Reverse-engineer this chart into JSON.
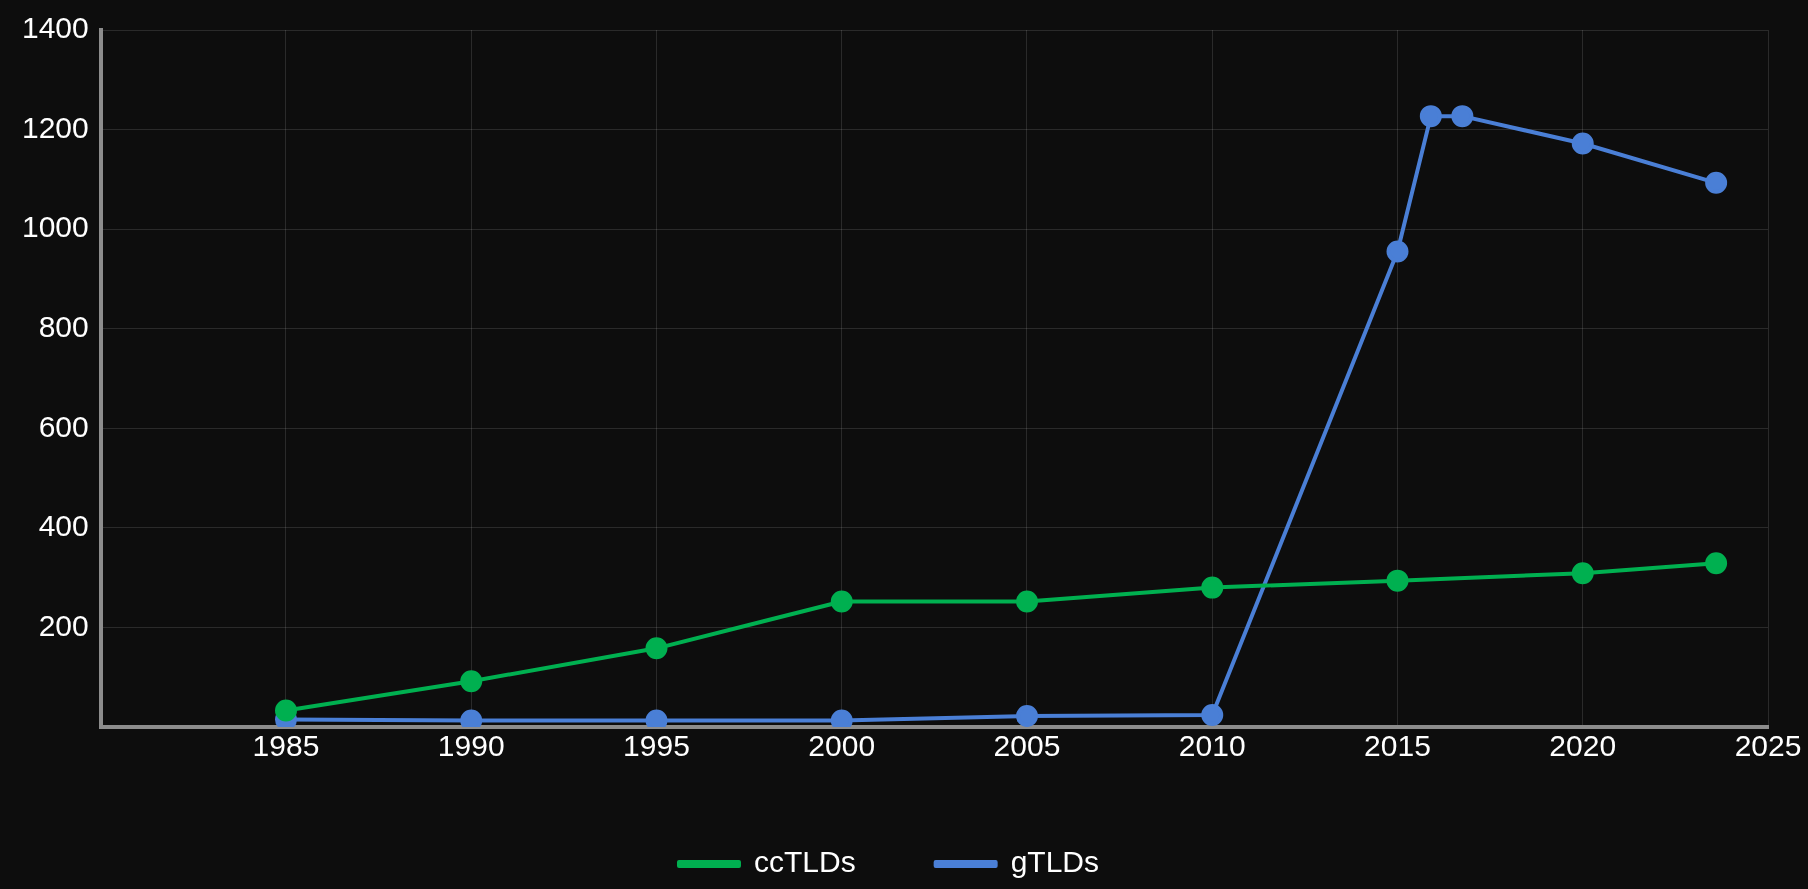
{
  "chart_data": {
    "type": "line",
    "xlim": [
      1980,
      2025
    ],
    "xticks": [
      1985,
      1990,
      1995,
      2000,
      2005,
      2010,
      2015,
      2020,
      2025
    ],
    "ylim": [
      0,
      1400
    ],
    "yticks": [
      200,
      400,
      600,
      800,
      1000,
      1200,
      1400
    ],
    "grid": true,
    "legend": "bottom",
    "marker": "circle",
    "line_style": "solid",
    "series": [
      {
        "name": "ccTLDs",
        "color": "#00b050",
        "x": [
          1985,
          1990,
          1995,
          2000,
          2005,
          2010,
          2015,
          2020,
          2023.6
        ],
        "values": [
          33,
          92,
          158,
          252,
          252,
          280,
          294,
          309,
          329
        ]
      },
      {
        "name": "gTLDs",
        "color": "#4a7fd6",
        "x": [
          1985,
          1990,
          1995,
          2000,
          2005,
          2010,
          2015,
          2015.9,
          2016.75,
          2020,
          2023.6
        ],
        "values": [
          15,
          13,
          13,
          13,
          22,
          24,
          955,
          1227,
          1227,
          1172,
          1093
        ]
      }
    ]
  }
}
